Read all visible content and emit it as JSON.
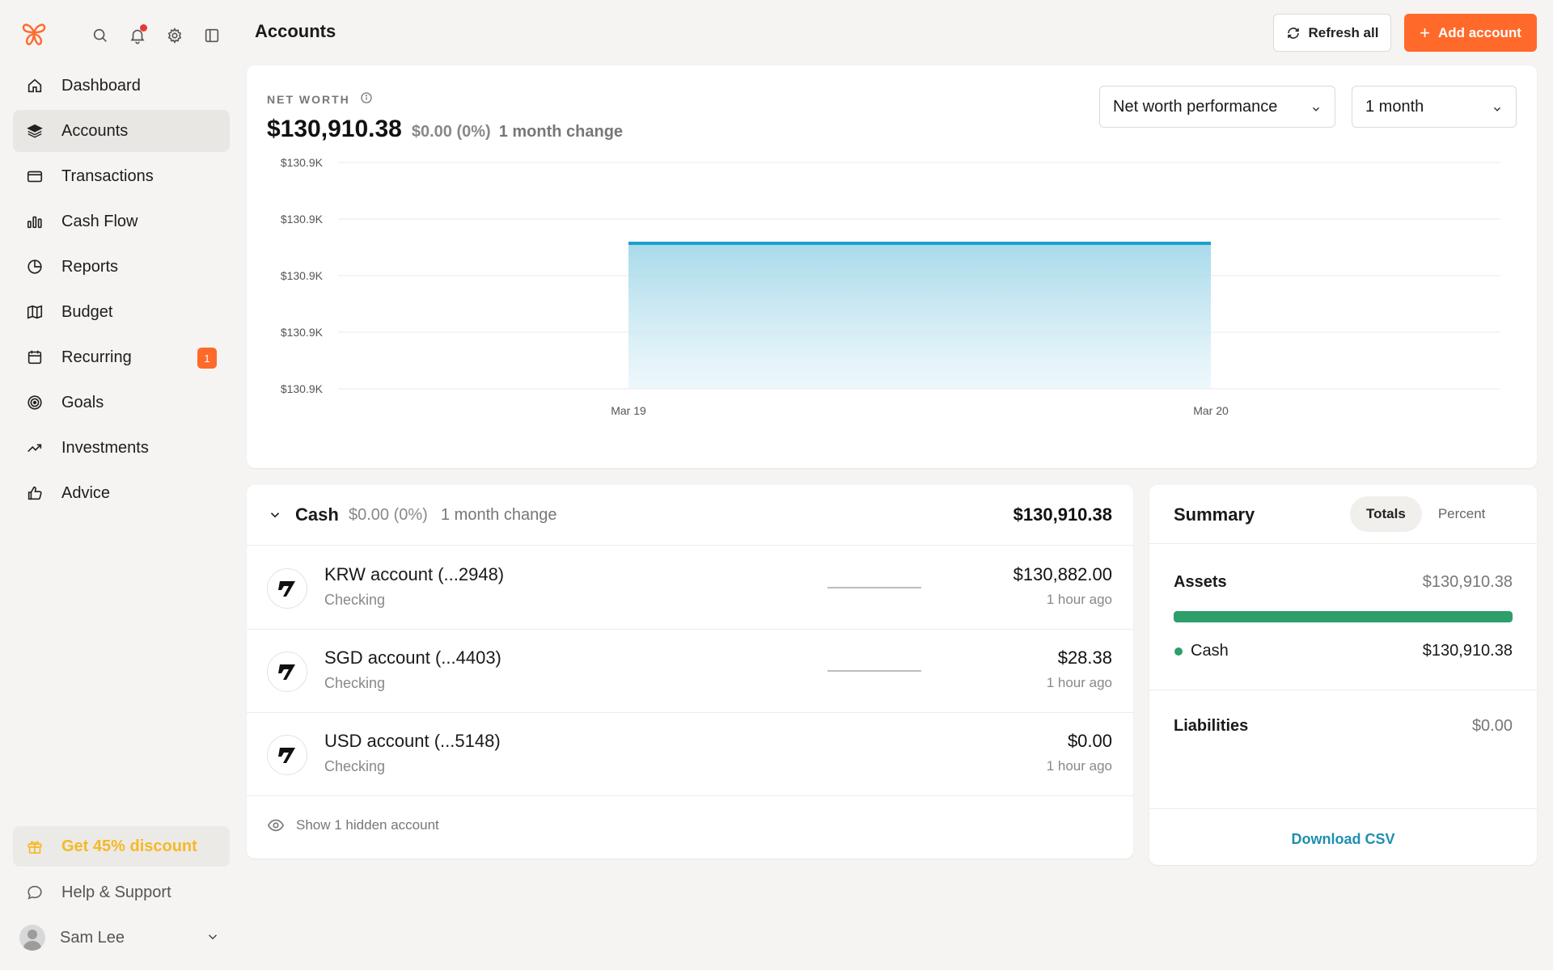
{
  "sidebar": {
    "nav": [
      {
        "label": "Dashboard",
        "icon": "home-icon"
      },
      {
        "label": "Accounts",
        "icon": "layers-icon",
        "active": true
      },
      {
        "label": "Transactions",
        "icon": "card-icon"
      },
      {
        "label": "Cash Flow",
        "icon": "bar-chart-icon"
      },
      {
        "label": "Reports",
        "icon": "pie-icon"
      },
      {
        "label": "Budget",
        "icon": "map-icon"
      },
      {
        "label": "Recurring",
        "icon": "calendar-icon",
        "badge": "1"
      },
      {
        "label": "Goals",
        "icon": "target-icon"
      },
      {
        "label": "Investments",
        "icon": "trend-icon"
      },
      {
        "label": "Advice",
        "icon": "thumbs-up-icon"
      }
    ],
    "discount": "Get 45% discount",
    "help": "Help & Support",
    "user": "Sam Lee"
  },
  "header": {
    "title": "Accounts",
    "refresh_label": "Refresh all",
    "add_label": "Add account"
  },
  "net_worth": {
    "label": "NET WORTH",
    "value": "$130,910.38",
    "change": "$0.00 (0%)",
    "period": "1 month change",
    "chart_select": "Net worth performance",
    "range_select": "1 month"
  },
  "chart_data": {
    "type": "area",
    "x": [
      "Mar 19",
      "Mar 20"
    ],
    "series": [
      {
        "values": [
          130910.38,
          130910.38
        ]
      }
    ],
    "y_ticks": [
      "$130.9K",
      "$130.9K",
      "$130.9K",
      "$130.9K",
      "$130.9K"
    ],
    "grid": true,
    "color": "#1a9fc9"
  },
  "cash": {
    "title": "Cash",
    "change": "$0.00 (0%)",
    "period": "1 month change",
    "total": "$130,910.38",
    "accounts": [
      {
        "name": "KRW account (...2948)",
        "type": "Checking",
        "balance": "$130,882.00",
        "updated": "1 hour ago",
        "sparkline": true
      },
      {
        "name": "SGD account (...4403)",
        "type": "Checking",
        "balance": "$28.38",
        "updated": "1 hour ago",
        "sparkline": true
      },
      {
        "name": "USD account (...5148)",
        "type": "Checking",
        "balance": "$0.00",
        "updated": "1 hour ago",
        "sparkline": false
      }
    ],
    "hidden_label": "Show 1 hidden account"
  },
  "summary": {
    "title": "Summary",
    "tabs": [
      "Totals",
      "Percent"
    ],
    "assets_label": "Assets",
    "assets_value": "$130,910.38",
    "assets_fill": 1.0,
    "cash_label": "Cash",
    "cash_value": "$130,910.38",
    "liabilities_label": "Liabilities",
    "liabilities_value": "$0.00",
    "csv_label": "Download CSV"
  },
  "colors": {
    "accent": "#ff6a2b",
    "asset_green": "#2e9e6a",
    "link_blue": "#1e8fb0",
    "discount_yellow": "#f5b925"
  }
}
